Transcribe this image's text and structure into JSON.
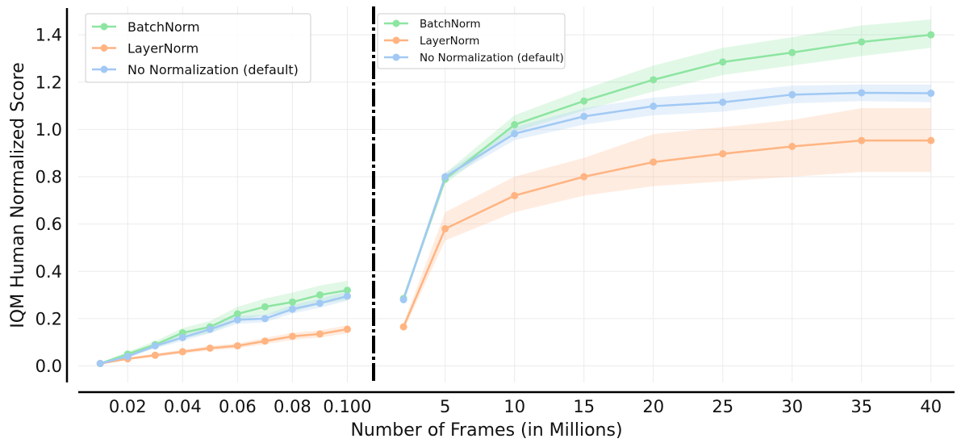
{
  "chart_data": {
    "type": "line",
    "ylabel": "IQM Human Normalized Score",
    "xlabel": "Number of Frames (in Millions)",
    "ylim": [
      -0.07,
      1.52
    ],
    "y_ticks": [
      "0.0",
      "0.2",
      "0.4",
      "0.6",
      "0.8",
      "1.0",
      "1.2",
      "1.4"
    ],
    "grid": true,
    "colors": {
      "BatchNorm": "#8de5a1",
      "LayerNorm": "#ffb482",
      "No Normalization (default)": "#a1c9f4"
    },
    "panels": [
      {
        "id": "left",
        "x_ticks": [
          "0.02",
          "0.04",
          "0.06",
          "0.08",
          "0.100"
        ],
        "x_tick_values": [
          0.02,
          0.04,
          0.06,
          0.08,
          0.1
        ],
        "xlim": [
          0.002,
          0.1075
        ],
        "legend_position": "upper-left",
        "x": [
          0.01,
          0.02,
          0.03,
          0.04,
          0.05,
          0.06,
          0.07,
          0.08,
          0.09,
          0.1
        ],
        "series": [
          {
            "name": "BatchNorm",
            "values": [
              0.01,
              0.05,
              0.09,
              0.14,
              0.165,
              0.22,
              0.25,
              0.27,
              0.3,
              0.32
            ],
            "lower": [
              0.008,
              0.04,
              0.075,
              0.115,
              0.14,
              0.19,
              0.215,
              0.23,
              0.26,
              0.28
            ],
            "upper": [
              0.012,
              0.06,
              0.105,
              0.16,
              0.19,
              0.25,
              0.285,
              0.31,
              0.34,
              0.36
            ]
          },
          {
            "name": "LayerNorm",
            "values": [
              0.01,
              0.03,
              0.045,
              0.06,
              0.075,
              0.085,
              0.105,
              0.125,
              0.135,
              0.155
            ],
            "lower": [
              0.008,
              0.025,
              0.038,
              0.052,
              0.065,
              0.075,
              0.092,
              0.11,
              0.12,
              0.138
            ],
            "upper": [
              0.012,
              0.035,
              0.052,
              0.068,
              0.085,
              0.095,
              0.118,
              0.14,
              0.15,
              0.172
            ]
          },
          {
            "name": "No Normalization (default)",
            "values": [
              0.01,
              0.04,
              0.085,
              0.12,
              0.155,
              0.195,
              0.2,
              0.24,
              0.265,
              0.295
            ],
            "lower": [
              0.008,
              0.033,
              0.075,
              0.105,
              0.138,
              0.178,
              0.184,
              0.222,
              0.246,
              0.275
            ],
            "upper": [
              0.012,
              0.047,
              0.095,
              0.135,
              0.172,
              0.212,
              0.216,
              0.258,
              0.284,
              0.315
            ]
          }
        ]
      },
      {
        "id": "right",
        "x_ticks": [
          "5",
          "10",
          "15",
          "20",
          "25",
          "30",
          "35",
          "40"
        ],
        "x_tick_values": [
          5,
          10,
          15,
          20,
          25,
          30,
          35,
          40
        ],
        "xlim": [
          0.25,
          41.7
        ],
        "legend_position": "upper-left",
        "x": [
          2,
          5,
          10,
          15,
          20,
          25,
          30,
          35,
          40
        ],
        "series": [
          {
            "name": "BatchNorm",
            "values": [
              0.285,
              0.79,
              1.02,
              1.12,
              1.21,
              1.285,
              1.325,
              1.37,
              1.4
            ],
            "lower": [
              0.27,
              0.77,
              0.99,
              1.08,
              1.16,
              1.23,
              1.27,
              1.31,
              1.345
            ],
            "upper": [
              0.3,
              0.815,
              1.06,
              1.17,
              1.27,
              1.345,
              1.39,
              1.44,
              1.465
            ]
          },
          {
            "name": "LayerNorm",
            "values": [
              0.165,
              0.58,
              0.72,
              0.8,
              0.862,
              0.897,
              0.928,
              0.953,
              0.953
            ],
            "lower": [
              0.15,
              0.53,
              0.65,
              0.72,
              0.76,
              0.78,
              0.8,
              0.82,
              0.82
            ],
            "upper": [
              0.18,
              0.65,
              0.8,
              0.88,
              0.98,
              1.01,
              1.04,
              1.09,
              1.09
            ]
          },
          {
            "name": "No Normalization (default)",
            "values": [
              0.28,
              0.8,
              0.982,
              1.055,
              1.098,
              1.115,
              1.147,
              1.155,
              1.153
            ],
            "lower": [
              0.265,
              0.785,
              0.955,
              1.02,
              1.06,
              1.075,
              1.11,
              1.12,
              1.115
            ],
            "upper": [
              0.295,
              0.815,
              1.01,
              1.09,
              1.135,
              1.155,
              1.185,
              1.19,
              1.19
            ]
          }
        ]
      }
    ]
  }
}
